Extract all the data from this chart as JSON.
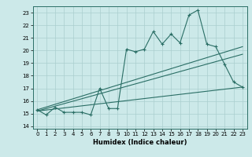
{
  "xlabel": "Humidex (Indice chaleur)",
  "background_color": "#cce9e9",
  "grid_color": "#aacece",
  "line_color": "#2a6e65",
  "xlim": [
    -0.5,
    23.5
  ],
  "ylim": [
    13.8,
    23.5
  ],
  "yticks": [
    14,
    15,
    16,
    17,
    18,
    19,
    20,
    21,
    22,
    23
  ],
  "xticks": [
    0,
    1,
    2,
    3,
    4,
    5,
    6,
    7,
    8,
    9,
    10,
    11,
    12,
    13,
    14,
    15,
    16,
    17,
    18,
    19,
    20,
    21,
    22,
    23
  ],
  "line1_x": [
    0,
    1,
    2,
    3,
    4,
    5,
    6,
    7,
    8,
    9,
    10,
    11,
    12,
    13,
    14,
    15,
    16,
    17,
    18,
    19,
    20,
    21,
    22,
    23
  ],
  "line1_y": [
    15.3,
    14.9,
    15.5,
    15.1,
    15.1,
    15.1,
    14.9,
    17.0,
    15.4,
    15.4,
    20.1,
    19.9,
    20.1,
    21.5,
    20.5,
    21.3,
    20.6,
    22.8,
    23.2,
    20.5,
    20.3,
    18.9,
    17.5,
    17.1
  ],
  "line2_x": [
    0,
    23
  ],
  "line2_y": [
    15.3,
    20.3
  ],
  "line3_x": [
    0,
    23
  ],
  "line3_y": [
    15.2,
    19.7
  ],
  "line4_x": [
    0,
    23
  ],
  "line4_y": [
    15.2,
    17.1
  ]
}
